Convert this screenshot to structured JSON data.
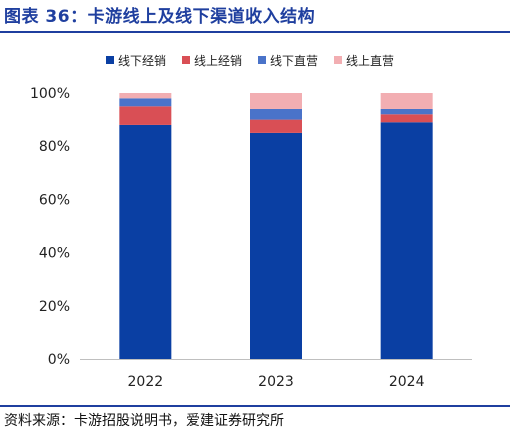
{
  "title": "图表 36：卡游线上及线下渠道收入结构",
  "source": "资料来源：卡游招股说明书，爱建证券研究所",
  "chart_data": {
    "type": "bar",
    "stacked": true,
    "categories": [
      "2022",
      "2023",
      "2024"
    ],
    "series": [
      {
        "name": "线下经销",
        "color": "#0a3fa3",
        "values": [
          88,
          85,
          89
        ]
      },
      {
        "name": "线上经销",
        "color": "#d94f55",
        "values": [
          7,
          5,
          3
        ]
      },
      {
        "name": "线下直营",
        "color": "#4a73c9",
        "values": [
          3,
          4,
          2
        ]
      },
      {
        "name": "线上直营",
        "color": "#f2aeb2",
        "values": [
          2,
          6,
          6
        ]
      }
    ],
    "ylim": [
      0,
      100
    ],
    "yticks": [
      "0%",
      "20%",
      "40%",
      "60%",
      "80%",
      "100%"
    ],
    "ytick_values": [
      0,
      20,
      40,
      60,
      80,
      100
    ],
    "legend_position": "top",
    "grid": false
  }
}
